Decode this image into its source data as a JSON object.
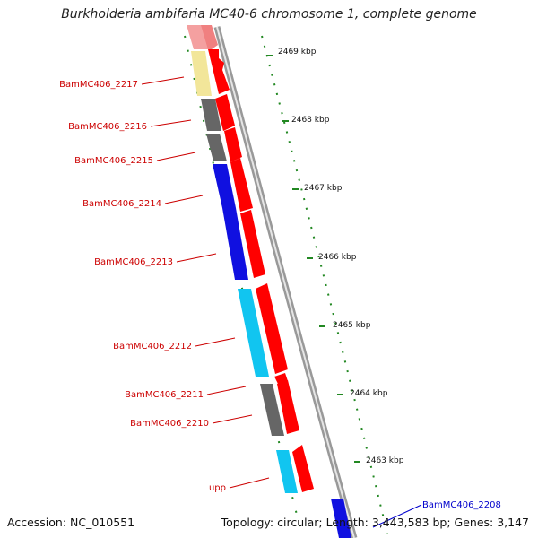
{
  "title": "Burkholderia ambifaria MC40-6 chromosome 1, complete genome",
  "footer": {
    "accession": "Accession: NC_010551",
    "summary": "Topology: circular; Length: 3,443,583 bp; Genes: 3,147"
  },
  "ruler": {
    "ticks": [
      "2469 kbp",
      "2468 kbp",
      "2467 kbp",
      "2466 kbp",
      "2465 kbp",
      "2464 kbp",
      "2463 kbp"
    ]
  },
  "genes": [
    {
      "name": "BamMC406_2217",
      "color": "#f2e69a"
    },
    {
      "name": "BamMC406_2216",
      "color": "#666666"
    },
    {
      "name": "BamMC406_2215",
      "color": "#666666"
    },
    {
      "name": "BamMC406_2214",
      "color": "#1010e0"
    },
    {
      "name": "BamMC406_2213",
      "color": "#1010e0"
    },
    {
      "name": "BamMC406_2212",
      "color": "#11c5f0"
    },
    {
      "name": "BamMC406_2211",
      "color": "#666666"
    },
    {
      "name": "BamMC406_2210",
      "color": "#666666"
    },
    {
      "name": "upp",
      "color": "#11c5f0"
    },
    {
      "name": "BamMC406_2208",
      "color": "#1010e0"
    }
  ],
  "colors": {
    "label_red": "#cc0000",
    "label_blue": "#0000cc",
    "cds_red": "#ff0000",
    "tick_green": "#228822",
    "backbone": "#888888"
  }
}
